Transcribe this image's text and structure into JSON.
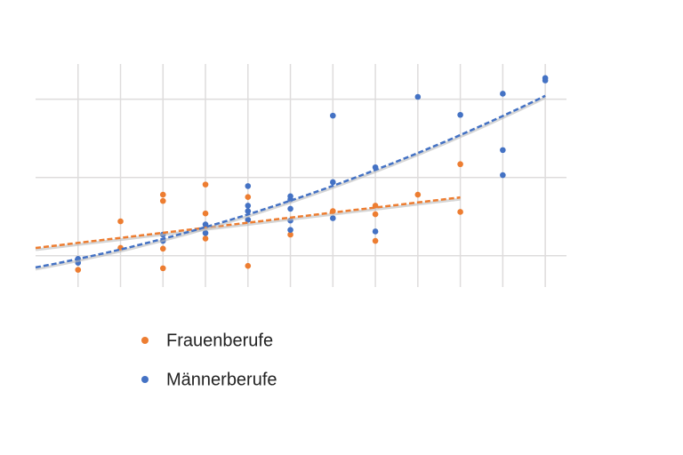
{
  "chart_data": {
    "type": "scatter",
    "xlim": [
      -1,
      11.5
    ],
    "ylim": [
      -0.4,
      2.45
    ],
    "xticks": [
      0,
      1,
      2,
      3,
      4,
      5,
      6,
      7,
      8,
      9,
      10,
      11
    ],
    "yticks": [
      0,
      1,
      2
    ],
    "grid": true,
    "series": [
      {
        "name": "Frauenberufe",
        "color": "#ed7d31",
        "trendline": "linear",
        "x": [
          0,
          1,
          1,
          2,
          2,
          2,
          2,
          3,
          3,
          3,
          4,
          4,
          5,
          6,
          7,
          7,
          7,
          8,
          9,
          9
        ],
        "values": [
          -0.18,
          0.44,
          0.1,
          0.78,
          0.7,
          0.09,
          -0.16,
          0.91,
          0.54,
          0.22,
          0.75,
          -0.13,
          0.27,
          0.57,
          0.64,
          0.53,
          0.19,
          0.78,
          1.17,
          0.56
        ]
      },
      {
        "name": "Männerberufe",
        "color": "#4472c4",
        "trendline": "polynomial",
        "x": [
          0,
          0,
          2,
          2,
          3,
          3,
          4,
          4,
          4,
          4,
          5,
          5,
          5,
          5,
          5,
          6,
          6,
          6,
          7,
          7,
          8,
          9,
          10,
          10,
          10,
          11,
          11
        ],
        "values": [
          -0.04,
          -0.09,
          0.27,
          0.19,
          0.4,
          0.29,
          0.89,
          0.64,
          0.57,
          0.46,
          0.76,
          0.72,
          0.6,
          0.45,
          0.33,
          1.79,
          0.94,
          0.48,
          1.13,
          0.31,
          2.03,
          1.8,
          2.07,
          1.35,
          1.03,
          2.27,
          2.24
        ]
      }
    ],
    "legend": "bottom-left"
  }
}
